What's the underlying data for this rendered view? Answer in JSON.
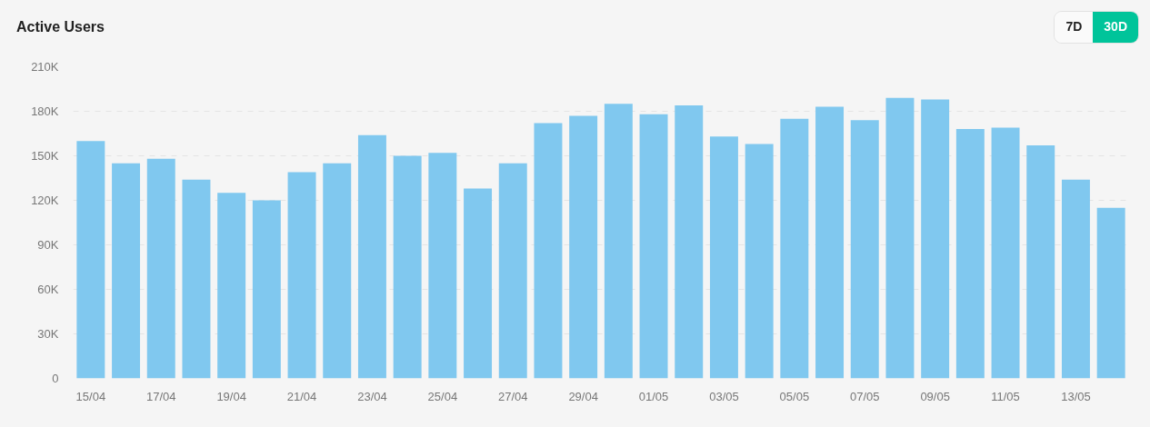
{
  "chart_data": {
    "type": "bar",
    "title": "Active Users",
    "annotations": [
      "7D",
      "30D"
    ],
    "categories": [
      "15/04",
      null,
      "17/04",
      null,
      "19/04",
      null,
      "21/04",
      null,
      "23/04",
      null,
      "25/04",
      null,
      "27/04",
      null,
      "29/04",
      null,
      "01/05",
      null,
      "03/05",
      null,
      "05/05",
      null,
      "07/05",
      null,
      "09/05",
      null,
      "11/05",
      null,
      "13/05",
      null
    ],
    "series": [
      {
        "color": "#80c8ef",
        "values": [
          160000,
          145000,
          148000,
          134000,
          125000,
          120000,
          139000,
          145000,
          164000,
          150000,
          152000,
          128000,
          145000,
          172000,
          177000,
          185000,
          178000,
          184000,
          163000,
          158000,
          175000,
          183000,
          174000,
          189000,
          188000,
          168000,
          169000,
          157000,
          134000,
          115000
        ]
      }
    ],
    "ylim": [
      0,
      210000
    ],
    "yticks": [
      0,
      {
        "value": 30000,
        "label": "30K"
      },
      {
        "value": 60000,
        "label": "60K"
      },
      {
        "value": 90000,
        "label": "90K"
      },
      {
        "value": 120000,
        "label": "120K"
      },
      {
        "value": 150000,
        "label": "150K"
      },
      {
        "value": 180000,
        "label": "180K"
      },
      {
        "value": 210000,
        "label": "210K"
      }
    ],
    "grid": "y"
  }
}
